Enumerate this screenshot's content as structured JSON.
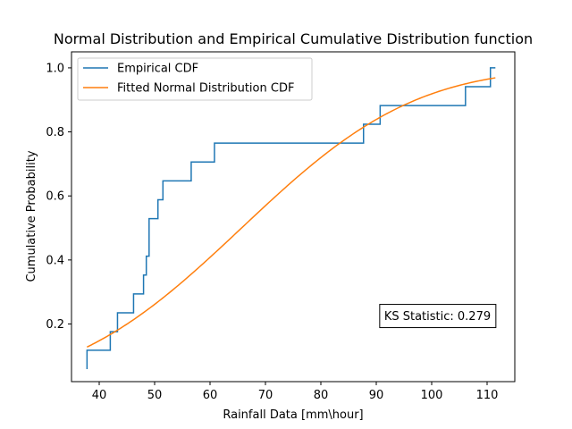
{
  "chart_data": {
    "type": "line",
    "title": "Normal Distribution and Empirical Cumulative Distribution function",
    "xlabel": "Rainfall Data [mm\\hour]",
    "ylabel": "Cumulative Probability",
    "xlim": [
      35,
      115
    ],
    "ylim": [
      0.02,
      1.05
    ],
    "xticks": [
      40,
      50,
      60,
      70,
      80,
      90,
      100,
      110
    ],
    "yticks": [
      0.2,
      0.4,
      0.6,
      0.8,
      1.0
    ],
    "xtick_labels": [
      "40",
      "50",
      "60",
      "70",
      "80",
      "90",
      "100",
      "110"
    ],
    "ytick_labels": [
      "0.2",
      "0.4",
      "0.6",
      "0.8",
      "1.0"
    ],
    "legend_position": "upper-left",
    "annotation": {
      "text": "KS Statistic: 0.279",
      "anchor_x": 90.7,
      "anchor_y": 0.225
    },
    "series": [
      {
        "name": "Empirical CDF",
        "style": "steps-post",
        "color": "#1f77b4",
        "x": [
          37.8,
          37.8,
          42.0,
          43.3,
          46.2,
          48.0,
          48.5,
          49.0,
          50.6,
          51.5,
          56.6,
          60.8,
          87.7,
          90.7,
          106.1,
          110.6,
          111.5
        ],
        "y": [
          0.059,
          0.118,
          0.176,
          0.235,
          0.294,
          0.353,
          0.412,
          0.529,
          0.588,
          0.647,
          0.706,
          0.765,
          0.824,
          0.882,
          0.941,
          1.0,
          1.0
        ]
      },
      {
        "name": "Fitted Normal Distribution CDF",
        "style": "line",
        "color": "#ff7f0e",
        "mean": 65.7,
        "std": 24.56,
        "x_range": [
          37.8,
          111.5
        ]
      }
    ]
  }
}
